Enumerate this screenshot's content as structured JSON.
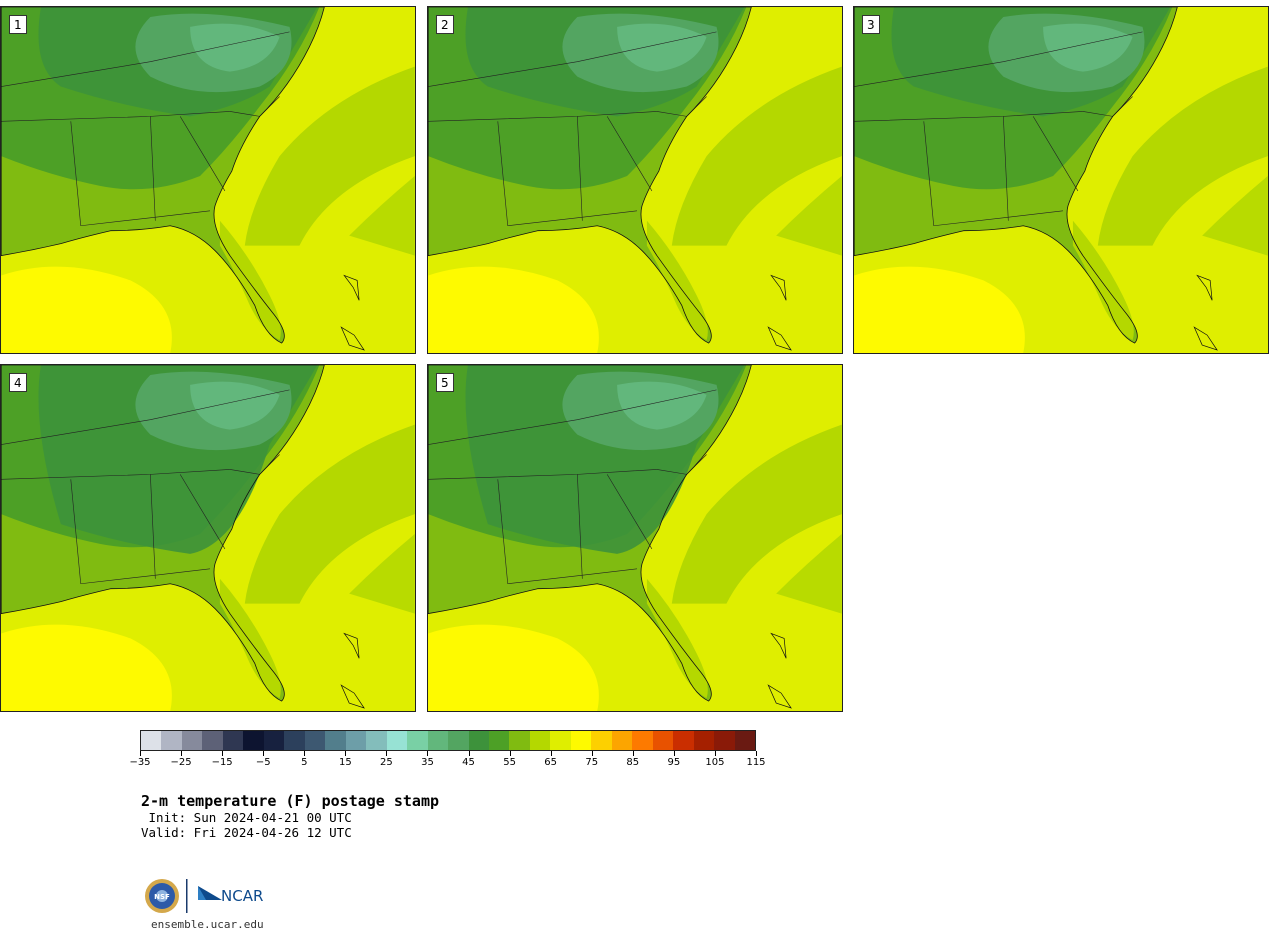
{
  "panels": [
    {
      "label": "1",
      "warmth": 0.0
    },
    {
      "label": "2",
      "warmth": 0.0
    },
    {
      "label": "3",
      "warmth": 0.0
    },
    {
      "label": "4",
      "warmth": -1.0
    },
    {
      "label": "5",
      "warmth": -0.9
    }
  ],
  "colorbar": {
    "colors": [
      "#dde1e8",
      "#b0b5c4",
      "#868a9c",
      "#5d6177",
      "#2f3752",
      "#0d1430",
      "#17213f",
      "#2c405c",
      "#3d5871",
      "#527e8c",
      "#6d9ea8",
      "#83bdbb",
      "#97e2d4",
      "#79d0a5",
      "#62b77c",
      "#53a561",
      "#3d923b",
      "#4da026",
      "#80bb11",
      "#b4d800",
      "#dfee00",
      "#fefa00",
      "#fdd000",
      "#fca500",
      "#fd7a00",
      "#e85200",
      "#ca2e00",
      "#a52000",
      "#8a1a08",
      "#6a1a12"
    ],
    "tick_labels": [
      "−35",
      "−25",
      "−15",
      "−5",
      "5",
      "15",
      "25",
      "35",
      "45",
      "55",
      "65",
      "75",
      "85",
      "95",
      "105",
      "115"
    ]
  },
  "title": "2-m temperature (F) postage stamp",
  "init": " Init: Sun 2024-04-21 00 UTC",
  "valid": "Valid: Fri 2024-04-26 12 UTC",
  "logo": {
    "nsf": "NSF",
    "ncar": "NCAR"
  },
  "site": "ensemble.ucar.edu",
  "temp_colors": {
    "gulf_warm": "#fefa00",
    "ocean_warm": "#dfee00",
    "coastal": "#b4d800",
    "land_warm": "#80bb11",
    "land_mid": "#4da026",
    "land_cool": "#3d923b",
    "land_cold": "#53a561",
    "mountain": "#62b77c"
  }
}
